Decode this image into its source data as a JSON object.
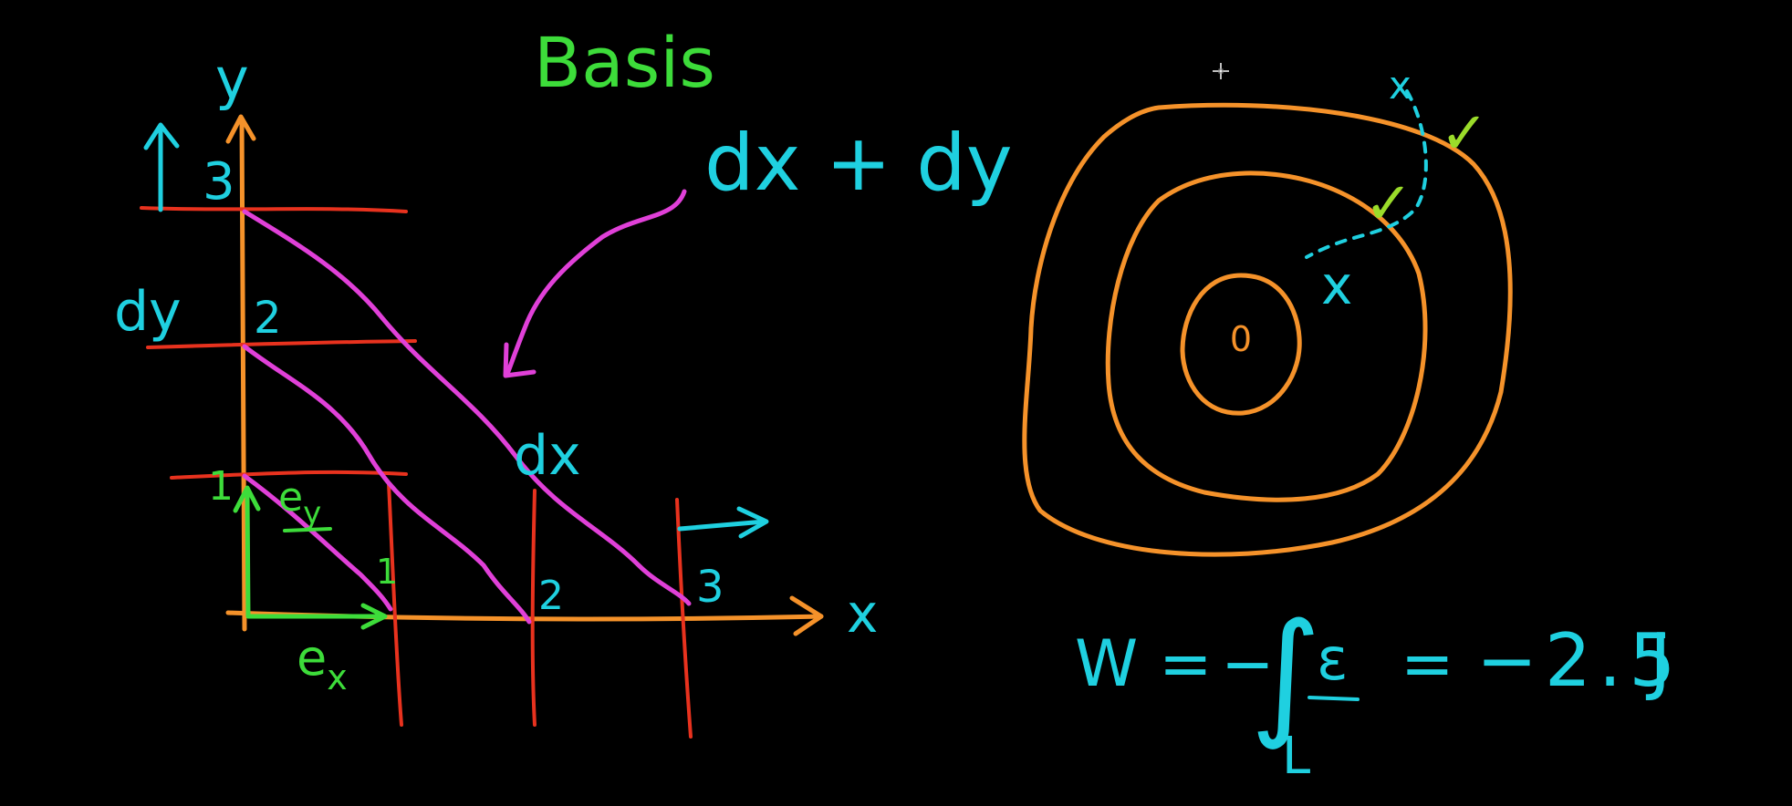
{
  "colors": {
    "background": "#000000",
    "orange": "#f5922a",
    "red": "#e8321e",
    "magenta": "#e040d8",
    "cyan": "#1fd0e0",
    "green": "#3ddc3a",
    "lime": "#9bdc2a"
  },
  "title": "Basis",
  "left_diagram": {
    "y_axis_label": "y",
    "x_axis_label": "x",
    "y_tick_labels": [
      "1",
      "2",
      "3"
    ],
    "x_tick_labels": [
      "1",
      "2",
      "3"
    ],
    "dy_label": "dy",
    "dx_label": "dx",
    "sum_label": "dx + dy",
    "ey_label": "e",
    "ey_subscript": "y",
    "ex_label": "e",
    "ex_subscript": "x"
  },
  "right_diagram": {
    "center_label": "0",
    "cross_marks": [
      "x",
      "x"
    ],
    "check_marks": [
      "✓",
      "✓"
    ]
  },
  "equation": {
    "lhs": "W",
    "equals_1": "=",
    "minus_1": "−",
    "integral": "∫",
    "integrand": "ε",
    "lower_limit": "L",
    "equals_2": "=",
    "rhs": "−2.5",
    "unit": "J"
  },
  "cursor_icon": "crosshair-move-icon"
}
